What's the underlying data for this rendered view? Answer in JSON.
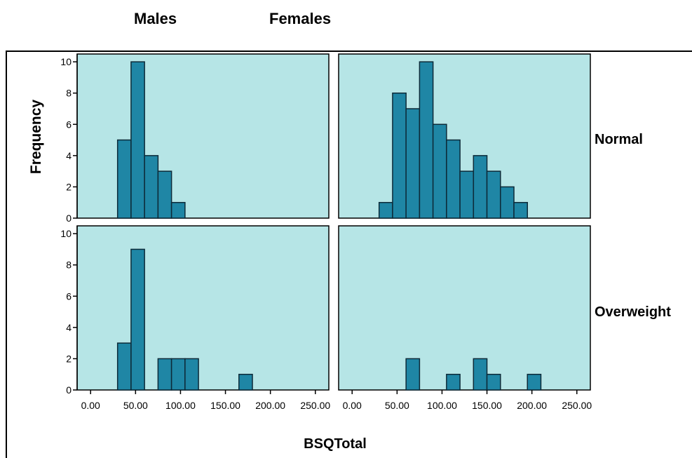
{
  "headers": {
    "males": "Males",
    "females": "Females"
  },
  "chart_data": {
    "type": "bar",
    "subtype": "histogram-panel-grid",
    "xlabel": "BSQTotal",
    "ylabel": "Frequency",
    "xlim": [
      -15,
      265
    ],
    "ylim": [
      0,
      10.5
    ],
    "xticks": [
      0,
      50,
      100,
      150,
      200,
      250
    ],
    "xtick_labels": [
      "0.00",
      "50.00",
      "100.00",
      "150.00",
      "200.00",
      "250.00"
    ],
    "yticks": [
      0,
      2,
      4,
      6,
      8,
      10
    ],
    "ytick_labels": [
      "0",
      "2",
      "4",
      "6",
      "8",
      "10"
    ],
    "bin_width": 15,
    "columns": [
      "Males",
      "Females"
    ],
    "rows": [
      "Normal",
      "Overweight"
    ],
    "colors": {
      "panel_background": "#b6e5e6",
      "bar_fill": "#1f86a5",
      "bar_stroke": "#0d2a38"
    },
    "panels": [
      {
        "column": "Males",
        "row": "Normal",
        "bins": [
          {
            "x": 30,
            "count": 5
          },
          {
            "x": 45,
            "count": 10
          },
          {
            "x": 60,
            "count": 4
          },
          {
            "x": 75,
            "count": 3
          },
          {
            "x": 90,
            "count": 1
          }
        ]
      },
      {
        "column": "Females",
        "row": "Normal",
        "bins": [
          {
            "x": 30,
            "count": 1
          },
          {
            "x": 45,
            "count": 8
          },
          {
            "x": 60,
            "count": 7
          },
          {
            "x": 75,
            "count": 10
          },
          {
            "x": 90,
            "count": 6
          },
          {
            "x": 105,
            "count": 5
          },
          {
            "x": 120,
            "count": 3
          },
          {
            "x": 135,
            "count": 4
          },
          {
            "x": 150,
            "count": 3
          },
          {
            "x": 165,
            "count": 2
          },
          {
            "x": 180,
            "count": 1
          }
        ]
      },
      {
        "column": "Males",
        "row": "Overweight",
        "bins": [
          {
            "x": 30,
            "count": 3
          },
          {
            "x": 45,
            "count": 9
          },
          {
            "x": 75,
            "count": 2
          },
          {
            "x": 90,
            "count": 2
          },
          {
            "x": 105,
            "count": 2
          },
          {
            "x": 165,
            "count": 1
          }
        ]
      },
      {
        "column": "Females",
        "row": "Overweight",
        "bins": [
          {
            "x": 60,
            "count": 2
          },
          {
            "x": 105,
            "count": 1
          },
          {
            "x": 135,
            "count": 2
          },
          {
            "x": 150,
            "count": 1
          },
          {
            "x": 195,
            "count": 1
          }
        ]
      }
    ]
  }
}
